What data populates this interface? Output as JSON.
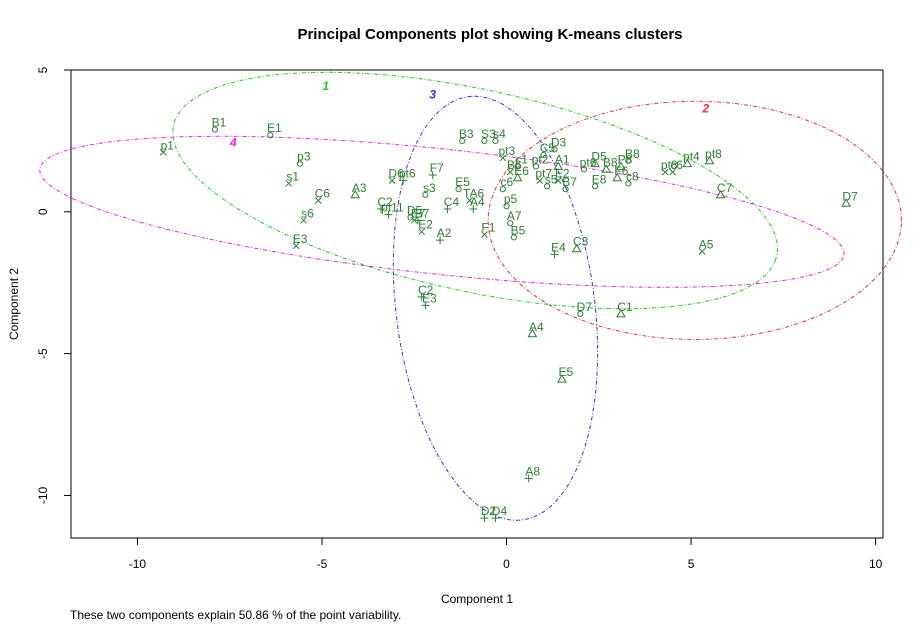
{
  "chart_data": {
    "type": "scatter",
    "title": "Principal Components plot showing K-means clusters",
    "xlabel": "Component 1",
    "ylabel": "Component 2",
    "xlim": [
      -11.8,
      10.2
    ],
    "ylim": [
      -11.5,
      5.0
    ],
    "xticks": [
      -10,
      -5,
      0,
      5,
      10
    ],
    "yticks": [
      -10,
      -5,
      0,
      5
    ],
    "point_color": "#2e7d32",
    "footnote": "These two components explain 50.86 % of the point variability.",
    "clusters": [
      {
        "name": "1",
        "color": "#22cc22",
        "label_pos": [
          -4.9,
          4.3
        ],
        "center": [
          -0.85,
          0.75
        ],
        "semi_axes": [
          8.5,
          3.5
        ],
        "angle": -17
      },
      {
        "name": "2",
        "color": "#ee3333",
        "label_pos": [
          5.4,
          3.5
        ],
        "center": [
          5.1,
          -0.3
        ],
        "semi_axes": [
          5.6,
          4.2
        ],
        "angle": 0
      },
      {
        "name": "3",
        "color": "#3333dd",
        "label_pos": [
          -2.0,
          4.0
        ],
        "center": [
          -0.3,
          -3.4
        ],
        "semi_axes": [
          7.5,
          2.7
        ],
        "angle": 95
      },
      {
        "name": "4",
        "color": "#ee22ee",
        "label_pos": [
          -7.4,
          2.3
        ],
        "center": [
          -1.75,
          0.0
        ],
        "semi_axes": [
          11.0,
          2.2
        ],
        "angle": -8
      }
    ],
    "points": [
      {
        "label": "p1",
        "x": -9.3,
        "y": 2.1,
        "m": "x"
      },
      {
        "label": "B1",
        "x": -7.9,
        "y": 2.9,
        "m": "o"
      },
      {
        "label": "E1",
        "x": -6.4,
        "y": 2.7,
        "m": "o"
      },
      {
        "label": "p3",
        "x": -5.6,
        "y": 1.7,
        "m": "o"
      },
      {
        "label": "s1",
        "x": -5.9,
        "y": 1.0,
        "m": "x"
      },
      {
        "label": "C6",
        "x": -5.1,
        "y": 0.4,
        "m": "x"
      },
      {
        "label": "s6",
        "x": -5.5,
        "y": -0.3,
        "m": "x"
      },
      {
        "label": "E3",
        "x": -5.7,
        "y": -1.2,
        "m": "x"
      },
      {
        "label": "A3",
        "x": -4.1,
        "y": 0.6,
        "m": "tri"
      },
      {
        "label": "C2",
        "x": -3.4,
        "y": 0.1,
        "m": "plus"
      },
      {
        "label": "pt11",
        "x": -3.2,
        "y": -0.1,
        "m": "plus"
      },
      {
        "label": "D6",
        "x": -3.1,
        "y": 1.1,
        "m": "x"
      },
      {
        "label": "pt6",
        "x": -2.8,
        "y": 1.1,
        "m": "plus"
      },
      {
        "label": "s3",
        "x": -2.2,
        "y": 0.6,
        "m": "o"
      },
      {
        "label": "D5",
        "x": -2.6,
        "y": -0.2,
        "m": "o"
      },
      {
        "label": "E7",
        "x": -2.5,
        "y": -0.3,
        "m": "x"
      },
      {
        "label": "B7",
        "x": -2.4,
        "y": -0.3,
        "m": "plus"
      },
      {
        "label": "E2",
        "x": -2.3,
        "y": -0.7,
        "m": "x"
      },
      {
        "label": "A2",
        "x": -1.8,
        "y": -1.0,
        "m": "plus"
      },
      {
        "label": "F7",
        "x": -2.0,
        "y": 1.3,
        "m": "plus"
      },
      {
        "label": "C4",
        "x": -1.6,
        "y": 0.1,
        "m": "plus"
      },
      {
        "label": "E5",
        "x": -1.3,
        "y": 0.8,
        "m": "o"
      },
      {
        "label": "TA6",
        "x": -1.0,
        "y": 0.4,
        "m": "x"
      },
      {
        "label": "A4",
        "x": -0.9,
        "y": 0.1,
        "m": "plus"
      },
      {
        "label": "F1",
        "x": -0.6,
        "y": -0.8,
        "m": "x"
      },
      {
        "label": "B3",
        "x": -1.2,
        "y": 2.5,
        "m": "o"
      },
      {
        "label": "S3",
        "x": -0.6,
        "y": 2.5,
        "m": "o"
      },
      {
        "label": "s4",
        "x": -0.3,
        "y": 2.5,
        "m": "o"
      },
      {
        "label": "pt3",
        "x": -0.1,
        "y": 1.9,
        "m": "x"
      },
      {
        "label": "c1",
        "x": 0.3,
        "y": 1.6,
        "m": "o"
      },
      {
        "label": "B6",
        "x": 0.1,
        "y": 1.4,
        "m": "x"
      },
      {
        "label": "c6",
        "x": -0.1,
        "y": 0.8,
        "m": "o"
      },
      {
        "label": "E6",
        "x": 0.3,
        "y": 1.2,
        "m": "tri"
      },
      {
        "label": "p5",
        "x": 0.0,
        "y": 0.2,
        "m": "o"
      },
      {
        "label": "A7",
        "x": 0.1,
        "y": -0.4,
        "m": "o"
      },
      {
        "label": "B5",
        "x": 0.2,
        "y": -0.9,
        "m": "o"
      },
      {
        "label": "pt2",
        "x": 0.8,
        "y": 1.6,
        "m": "o"
      },
      {
        "label": "C5",
        "x": 1.0,
        "y": 2.0,
        "m": "o"
      },
      {
        "label": "D3",
        "x": 1.3,
        "y": 2.2,
        "m": "o"
      },
      {
        "label": "A1",
        "x": 1.4,
        "y": 1.6,
        "m": "tri"
      },
      {
        "label": "pt7",
        "x": 0.9,
        "y": 1.1,
        "m": "x"
      },
      {
        "label": "s5",
        "x": 1.1,
        "y": 0.9,
        "m": "o"
      },
      {
        "label": "E2",
        "x": 1.4,
        "y": 1.1,
        "m": "x"
      },
      {
        "label": "B7",
        "x": 1.6,
        "y": 0.8,
        "m": "o"
      },
      {
        "label": "E4",
        "x": 1.3,
        "y": -1.5,
        "m": "plus"
      },
      {
        "label": "C3",
        "x": 1.9,
        "y": -1.3,
        "m": "tri"
      },
      {
        "label": "D5",
        "x": 2.4,
        "y": 1.7,
        "m": "tri"
      },
      {
        "label": "pt6",
        "x": 2.1,
        "y": 1.5,
        "m": "o"
      },
      {
        "label": "B8",
        "x": 2.7,
        "y": 1.5,
        "m": "tri"
      },
      {
        "label": "E8",
        "x": 2.4,
        "y": 0.9,
        "m": "o"
      },
      {
        "label": "P8",
        "x": 3.1,
        "y": 1.6,
        "m": "tri"
      },
      {
        "label": "B8",
        "x": 3.3,
        "y": 1.8,
        "m": "o"
      },
      {
        "label": "F6",
        "x": 3.0,
        "y": 1.2,
        "m": "tri"
      },
      {
        "label": "c8",
        "x": 3.3,
        "y": 1.0,
        "m": "o"
      },
      {
        "label": "pt8",
        "x": 4.3,
        "y": 1.4,
        "m": "x"
      },
      {
        "label": "c6",
        "x": 4.5,
        "y": 1.4,
        "m": "x"
      },
      {
        "label": "pt4",
        "x": 4.9,
        "y": 1.7,
        "m": "tri"
      },
      {
        "label": "pt8",
        "x": 5.5,
        "y": 1.8,
        "m": "tri"
      },
      {
        "label": "C7",
        "x": 5.8,
        "y": 0.6,
        "m": "tri"
      },
      {
        "label": "D7",
        "x": 9.2,
        "y": 0.3,
        "m": "tri"
      },
      {
        "label": "A5",
        "x": 5.3,
        "y": -1.4,
        "m": "x"
      },
      {
        "label": "D7",
        "x": 2.0,
        "y": -3.6,
        "m": "o"
      },
      {
        "label": "C1",
        "x": 3.1,
        "y": -3.6,
        "m": "tri"
      },
      {
        "label": "A4",
        "x": 0.7,
        "y": -4.3,
        "m": "tri"
      },
      {
        "label": "E5",
        "x": 1.5,
        "y": -5.9,
        "m": "tri"
      },
      {
        "label": "A8",
        "x": 0.6,
        "y": -9.4,
        "m": "plus"
      },
      {
        "label": "C2",
        "x": -2.3,
        "y": -3.0,
        "m": "plus"
      },
      {
        "label": "E3",
        "x": -2.2,
        "y": -3.3,
        "m": "plus"
      },
      {
        "label": "D2",
        "x": -0.6,
        "y": -10.8,
        "m": "plus"
      },
      {
        "label": "D4",
        "x": -0.3,
        "y": -10.8,
        "m": "plus"
      }
    ]
  }
}
